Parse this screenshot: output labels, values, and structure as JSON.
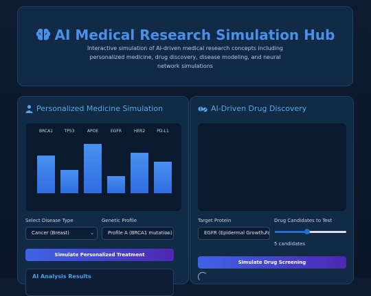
{
  "header": {
    "title": "AI Medical Research Simulation Hub",
    "subtitle": "Interactive simulation of AI-driven medical research concepts including personalized medicine, drug discovery, disease modeling, and neural network simulations",
    "icon": "brain-icon"
  },
  "personalized": {
    "title": "Personalized Medicine Simulation",
    "icon": "user-doctor-icon",
    "disease_label": "Select Disease Type",
    "disease_value": "Cancer (Breast)",
    "profile_label": "Genetic Profile",
    "profile_value": "Profile A (BRCA1 mutation)",
    "button": "Simulate Personalized Treatment",
    "results_title": "AI Analysis Results"
  },
  "drug": {
    "title": "AI-Driven Drug Discovery",
    "icon": "pills-icon",
    "protein_label": "Target Protein",
    "protein_value": "EGFR (Epidermal Growth Factor)",
    "candidates_label": "Drug Candidates to Test",
    "candidates_value": "5 candidates",
    "slider_fraction": 0.45,
    "button": "Simulate Drug Screening"
  },
  "chart_data": {
    "type": "bar",
    "categories": [
      "BRCA1",
      "TP53",
      "APOE",
      "EGFR",
      "HER2",
      "PD-L1"
    ],
    "values": [
      55,
      34,
      72,
      25,
      59,
      46
    ],
    "ylim": [
      0,
      80
    ],
    "bar_color_top": "#4a90f0",
    "bar_color_bottom": "#2f6de0"
  }
}
